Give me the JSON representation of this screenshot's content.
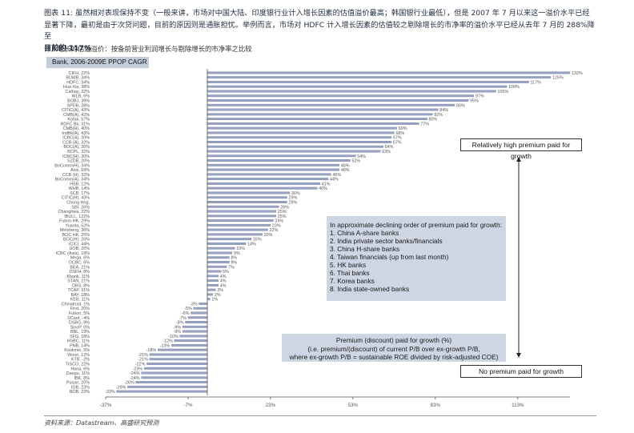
{
  "caption": {
    "line1": "图表  11:  虽然相对表现保持不变（一般来讲，市场对中国大陆、印度银行业计入增长因素的估值溢价最高；韩国银行业最低），但是 2007 年 7 月以来这一溢价水平已经",
    "line2": "显著下降，最初是由于次贷问题，目前的原因则是通胀担忧。举例而言，市场对 HDFC 计入增长因素的估值较之剔除增长的市净率的溢价水平已经从去年 7 月的 288%降至",
    "line3": "目前的 117%"
  },
  "subcaption": "计入增长的估值溢价：按备前营业利润增长与剔除增长的市净率之比较",
  "box_title": "Bank, 2006-2009E PPOP CAGR",
  "annotations": {
    "high_premium": "Relatively high premium paid for growth",
    "no_premium": "No premium paid for growth",
    "order_title": "In approximate declining order of premium paid for growth:",
    "order_items": [
      "1. China A-share banks",
      "2. India private sector banks/financials",
      "3. China H-share banks",
      "4. Taiwan financials (up from last month)",
      "5. HK banks",
      "6. Thai banks",
      "7. Korea banks",
      "8. India state-owned banks"
    ],
    "premium_line1": "Premium (discount) paid for growth (%)",
    "premium_line2": "(i.e. premium/(discount) of current P/B over ex-growth P/B,",
    "premium_line3": "where ex-growth P/B = sustainable ROE divided by risk-adjusted COE)"
  },
  "source": "资料来源：Datastream、高盛研究预测",
  "colors": {
    "bar": "#9aa5c3",
    "bar_dark": "#6d7ba3",
    "axis": "#555555",
    "box_fill": "#cfd6e3"
  },
  "chart_data": {
    "type": "bar",
    "orientation": "horizontal",
    "xlim": [
      -37,
      132
    ],
    "x_ticks": [
      "-37%",
      "-7%",
      "23%",
      "53%",
      "83%",
      "113%"
    ],
    "x_tick_values": [
      -37,
      -7,
      23,
      53,
      83,
      113
    ],
    "grid": false,
    "categories": [
      "CIFH, 22%",
      "BOMB, 34%",
      "HDFC, 34%",
      "Hua Xia, 38%",
      "Cathay, 32%",
      "WLB, 6%",
      "BOBJ, 39%",
      "SPDB, 28%",
      "CITIC(A), 43%",
      "CMB(A), 42%",
      "Kotak, 57%",
      "HDFC Bk, 31%",
      "CMB(H), 40%",
      "IndBk(A), 43%",
      "ICBC(A), 30%",
      "CCB (A), 32%",
      "BOC(A), 20%",
      "BCPL, 32%",
      "ICBC(H), 30%",
      "SZDB, 20%",
      "BoComm(H), 34%",
      "Axis, 69%",
      "CCB (H), 32%",
      "BoComm(A), 34%",
      "HSB, 12%",
      "WHB, 14%",
      "SCB, 17%",
      "CITIC(H), 43%",
      "Chong Hng, ",
      "SBI, 26%",
      "Changhwa, 22%",
      "IBULL, 122%",
      "Fubon HK, 29%",
      "Yuanta, 52%",
      "Minsheng, 36%",
      "BOC HK, 25%",
      "BOC(H), 20%",
      "ICICI, 44%",
      "UOB, 20%",
      "ICBC (Asia), 19%",
      "Mega, 6%",
      "OCBC, 6%",
      "BEA, 21%",
      "DSFH, 8%",
      "Kbank, 11%",
      "STAN, 21%",
      "DBS, 8%",
      "TCAP, 31%",
      "BAY, 18%",
      "KEB, 11%",
      "Chinatrust, 1%",
      "First, 20%",
      "Fubon, 5%",
      "SCard, -4%",
      "DSBG, 9%",
      "SinoP, 0%",
      "BBL, 19%",
      "SFG, 18%",
      "HSBC, 11%",
      "PNB, 14%",
      "Kookmin, 5%",
      "Woori, 12%",
      "KTB, -2%",
      "TISCO, 22%",
      "Hana, 6%",
      "Daegu, 11%",
      "IBK, 8%",
      "Pusan, 20%",
      "IOB, 23%",
      "BOB, 22%"
    ],
    "values": [
      132,
      125,
      117,
      109,
      105,
      97,
      95,
      90,
      84,
      82,
      80,
      77,
      69,
      68,
      67,
      67,
      64,
      63,
      54,
      52,
      48,
      48,
      45,
      44,
      41,
      40,
      30,
      29,
      29,
      26,
      25,
      25,
      24,
      23,
      22,
      20,
      16,
      14,
      10,
      9,
      8,
      8,
      7,
      5,
      4,
      4,
      4,
      3,
      2,
      1,
      -3,
      -5,
      -6,
      -7,
      -8,
      -9,
      -9,
      -10,
      -12,
      -13,
      -18,
      -21,
      -21,
      -22,
      -23,
      -24,
      -24,
      -26,
      -29,
      -33
    ],
    "value_labels": [
      "132%",
      "125%",
      "117%",
      "109%",
      "105%",
      "97%",
      "95%",
      "90%",
      "84%",
      "82%",
      "80%",
      "77%",
      "69%",
      "68%",
      "67%",
      "67%",
      "64%",
      "63%",
      "54%",
      "52%",
      "48%",
      "48%",
      "45%",
      "44%",
      "41%",
      "40%",
      "30%",
      "29%",
      "29%",
      "26%",
      "25%",
      "25%",
      "24%",
      "23%",
      "22%",
      "20%",
      "16%",
      "14%",
      "10%",
      "9%",
      "8%",
      "8%",
      "7%",
      "5%",
      "4%",
      "4%",
      "4%",
      "3%",
      "2%",
      "1%",
      "-3%",
      "-5%",
      "-6%",
      "-7%",
      "-8%",
      "-9%",
      "-9%",
      "-10%",
      "-12%",
      "-13%",
      "-18%",
      "-21%",
      "-21%",
      "-22%",
      "-23%",
      "-24%",
      "-24%",
      "-26%",
      "-29%",
      "-33%"
    ]
  }
}
